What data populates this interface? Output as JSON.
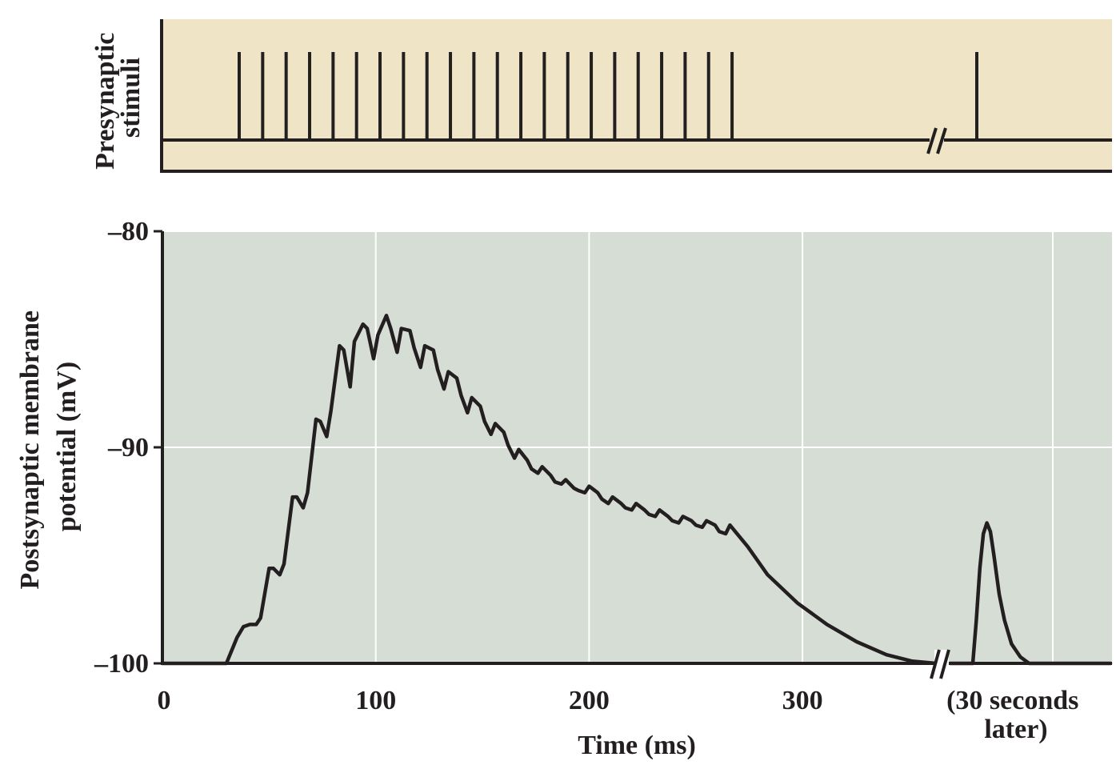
{
  "colors": {
    "top_panel_bg": "#efe5c6",
    "bottom_panel_bg": "#d6ddd4",
    "ink": "#231f20",
    "gridline": "#ffffff"
  },
  "chart_data": [
    {
      "type": "line",
      "panel": "presynaptic",
      "ylabel_lines": [
        "Presynaptic",
        "stimuli"
      ],
      "stimulus_times_ms": [
        35,
        46,
        57,
        68,
        79,
        90,
        101,
        112,
        123,
        134,
        145,
        156,
        167,
        178,
        189,
        200,
        211,
        222,
        233,
        244,
        255,
        266
      ],
      "stimulus_after_break_ms": [
        378
      ],
      "axis_break": "after train, before final stimulus",
      "grid": false
    },
    {
      "type": "line",
      "panel": "postsynaptic",
      "ylabel_lines": [
        "Postsynaptic membrane",
        "potential (mV)"
      ],
      "xlabel": "Time (ms)",
      "xticks": [
        0,
        100,
        200,
        300
      ],
      "xtick_labels": [
        "0",
        "100",
        "200",
        "300"
      ],
      "after_break_label_lines": [
        "(30 seconds",
        "later)"
      ],
      "yticks": [
        -80,
        -90,
        -100
      ],
      "ytick_labels": [
        "–80",
        "–90",
        "–100"
      ],
      "ylim": [
        -100,
        -80
      ],
      "xlim": [
        0,
        440
      ],
      "grid": true,
      "series": [
        {
          "x": [
            0,
            30,
            35,
            38,
            41,
            44,
            46,
            50,
            52,
            55,
            57,
            61,
            63,
            66,
            68,
            72,
            74,
            77,
            79,
            83,
            85,
            88,
            90,
            94,
            96,
            99,
            101,
            105,
            107,
            110,
            112,
            116,
            118,
            121,
            123,
            127,
            129,
            132,
            134,
            138,
            140,
            143,
            145,
            149,
            151,
            154,
            156,
            160,
            162,
            165,
            167,
            171,
            173,
            176,
            178,
            182,
            184,
            187,
            189,
            193,
            195,
            198,
            200,
            204,
            206,
            209,
            211,
            215,
            217,
            220,
            222,
            226,
            228,
            231,
            233,
            237,
            239,
            242,
            244,
            248,
            250,
            253,
            255,
            259,
            261,
            264,
            266,
            275,
            285,
            300,
            315,
            330,
            345,
            358,
            370
          ],
          "y": [
            -100,
            -100,
            -98.8,
            -98.3,
            -98.2,
            -98.2,
            -97.9,
            -95.6,
            -95.6,
            -95.9,
            -95.4,
            -92.3,
            -92.3,
            -92.8,
            -92.1,
            -88.7,
            -88.8,
            -89.5,
            -88.3,
            -85.3,
            -85.5,
            -87.2,
            -85.1,
            -84.3,
            -84.5,
            -85.9,
            -84.8,
            -83.9,
            -84.5,
            -85.6,
            -84.5,
            -84.6,
            -85.4,
            -86.3,
            -85.3,
            -85.5,
            -86.4,
            -87.3,
            -86.5,
            -86.8,
            -87.6,
            -88.4,
            -87.7,
            -88.1,
            -88.8,
            -89.4,
            -88.9,
            -89.3,
            -89.9,
            -90.5,
            -90.1,
            -90.6,
            -91.0,
            -91.2,
            -90.9,
            -91.3,
            -91.6,
            -91.7,
            -91.5,
            -91.9,
            -92.0,
            -92.1,
            -91.8,
            -92.1,
            -92.4,
            -92.6,
            -92.3,
            -92.6,
            -92.8,
            -92.9,
            -92.6,
            -92.9,
            -93.1,
            -93.2,
            -92.9,
            -93.2,
            -93.4,
            -93.5,
            -93.2,
            -93.4,
            -93.6,
            -93.7,
            -93.4,
            -93.6,
            -93.9,
            -94.0,
            -93.6,
            -94.6,
            -95.9,
            -97.2,
            -98.2,
            -99.0,
            -99.6,
            -99.9,
            -100.0
          ]
        },
        {
          "segment": "after break",
          "x": [
            370,
            378,
            380,
            382,
            384,
            386,
            388,
            390,
            393,
            396,
            400,
            405,
            410,
            416,
            440
          ],
          "y": [
            -100,
            -100,
            -98.0,
            -95.6,
            -94.0,
            -93.5,
            -93.9,
            -95.0,
            -96.8,
            -98.0,
            -99.1,
            -99.7,
            -100.0,
            -100.0,
            -100.0
          ]
        }
      ]
    }
  ]
}
